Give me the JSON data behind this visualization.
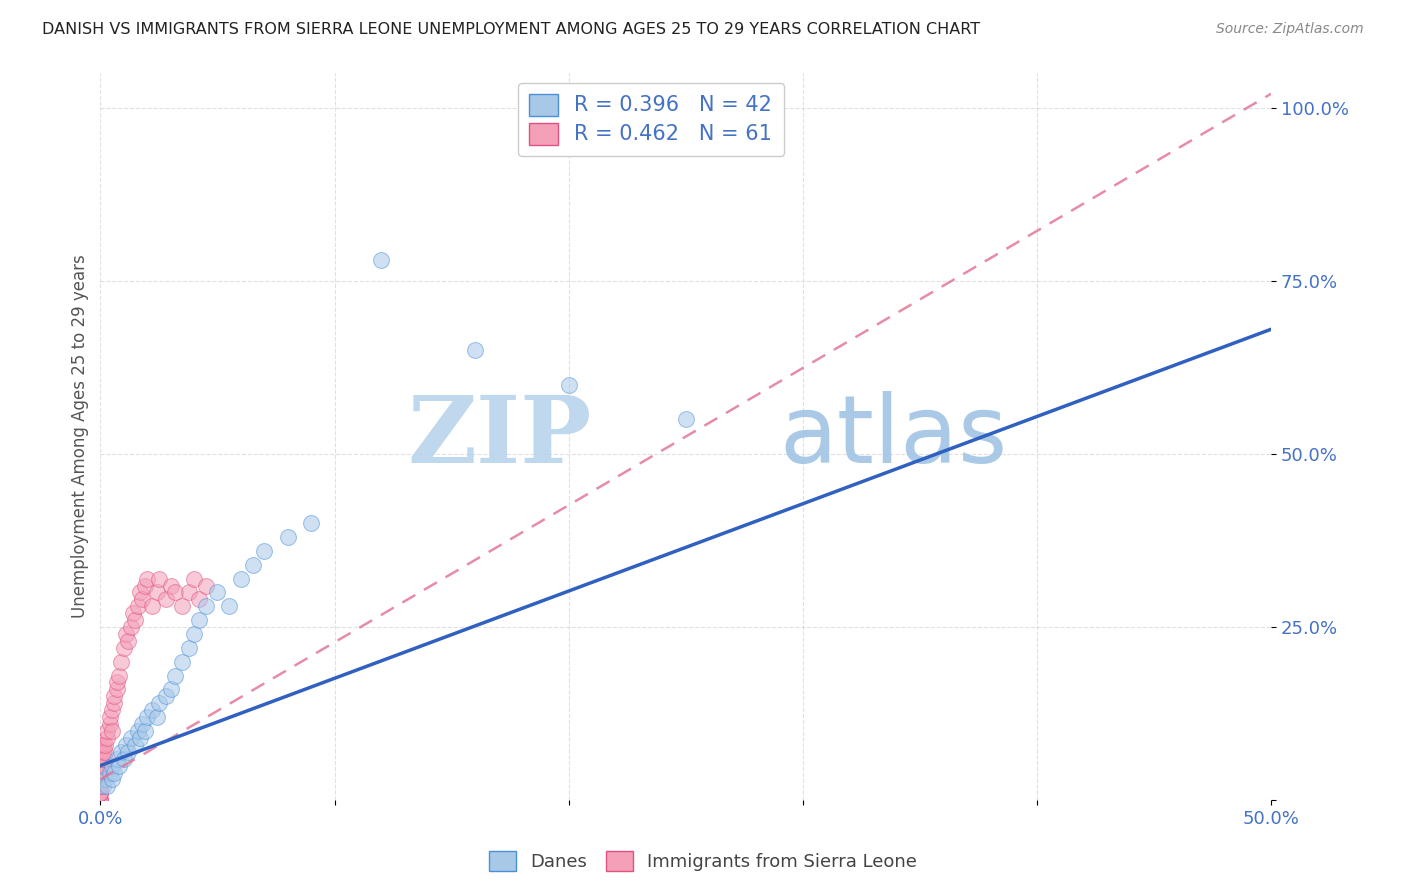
{
  "title": "DANISH VS IMMIGRANTS FROM SIERRA LEONE UNEMPLOYMENT AMONG AGES 25 TO 29 YEARS CORRELATION CHART",
  "source": "Source: ZipAtlas.com",
  "ylabel": "Unemployment Among Ages 25 to 29 years",
  "xlim": [
    0.0,
    0.5
  ],
  "ylim": [
    0.0,
    1.05
  ],
  "xticks": [
    0.0,
    0.1,
    0.2,
    0.3,
    0.4,
    0.5
  ],
  "yticks": [
    0.0,
    0.25,
    0.5,
    0.75,
    1.0
  ],
  "xticklabels": [
    "0.0%",
    "",
    "",
    "",
    "",
    "50.0%"
  ],
  "yticklabels": [
    "",
    "25.0%",
    "50.0%",
    "75.0%",
    "100.0%"
  ],
  "danes_color": "#a8c8e8",
  "danes_edge_color": "#4a90d9",
  "immigrants_color": "#f4a0b8",
  "immigrants_edge_color": "#e05080",
  "danes_R": 0.396,
  "danes_N": 42,
  "immigrants_R": 0.462,
  "immigrants_N": 61,
  "danes_line_color": "#3060c0",
  "immigrants_line_color": "#e07090",
  "danes_scatter_x": [
    0.001,
    0.002,
    0.003,
    0.004,
    0.005,
    0.005,
    0.006,
    0.007,
    0.008,
    0.009,
    0.01,
    0.011,
    0.012,
    0.013,
    0.015,
    0.016,
    0.017,
    0.018,
    0.019,
    0.02,
    0.022,
    0.024,
    0.025,
    0.028,
    0.03,
    0.032,
    0.035,
    0.038,
    0.04,
    0.042,
    0.045,
    0.05,
    0.055,
    0.06,
    0.065,
    0.07,
    0.08,
    0.09,
    0.12,
    0.16,
    0.2,
    0.25
  ],
  "danes_scatter_y": [
    0.02,
    0.03,
    0.02,
    0.04,
    0.03,
    0.05,
    0.04,
    0.06,
    0.05,
    0.07,
    0.06,
    0.08,
    0.07,
    0.09,
    0.08,
    0.1,
    0.09,
    0.11,
    0.1,
    0.12,
    0.13,
    0.12,
    0.14,
    0.15,
    0.16,
    0.18,
    0.2,
    0.22,
    0.24,
    0.26,
    0.28,
    0.3,
    0.28,
    0.32,
    0.34,
    0.36,
    0.38,
    0.4,
    0.78,
    0.65,
    0.6,
    0.55
  ],
  "immigrants_scatter_x": [
    0.0,
    0.0,
    0.0,
    0.0,
    0.0,
    0.0,
    0.0,
    0.0,
    0.0,
    0.0,
    0.0,
    0.0,
    0.0,
    0.0,
    0.0,
    0.0,
    0.0,
    0.0,
    0.0,
    0.0,
    0.001,
    0.001,
    0.001,
    0.001,
    0.002,
    0.002,
    0.002,
    0.003,
    0.003,
    0.004,
    0.004,
    0.005,
    0.005,
    0.006,
    0.006,
    0.007,
    0.007,
    0.008,
    0.009,
    0.01,
    0.011,
    0.012,
    0.013,
    0.014,
    0.015,
    0.016,
    0.017,
    0.018,
    0.019,
    0.02,
    0.022,
    0.024,
    0.025,
    0.028,
    0.03,
    0.032,
    0.035,
    0.038,
    0.04,
    0.042,
    0.045
  ],
  "immigrants_scatter_y": [
    0.0,
    0.0,
    0.0,
    0.0,
    0.01,
    0.01,
    0.01,
    0.02,
    0.02,
    0.03,
    0.03,
    0.04,
    0.04,
    0.05,
    0.05,
    0.06,
    0.06,
    0.07,
    0.07,
    0.08,
    0.05,
    0.06,
    0.07,
    0.08,
    0.06,
    0.07,
    0.08,
    0.09,
    0.1,
    0.11,
    0.12,
    0.1,
    0.13,
    0.14,
    0.15,
    0.16,
    0.17,
    0.18,
    0.2,
    0.22,
    0.24,
    0.23,
    0.25,
    0.27,
    0.26,
    0.28,
    0.3,
    0.29,
    0.31,
    0.32,
    0.28,
    0.3,
    0.32,
    0.29,
    0.31,
    0.3,
    0.28,
    0.3,
    0.32,
    0.29,
    0.31
  ],
  "background_color": "#ffffff",
  "grid_color": "#cccccc",
  "watermark_zip": "ZIP",
  "watermark_atlas": "atlas",
  "watermark_color": "#c8dff0"
}
